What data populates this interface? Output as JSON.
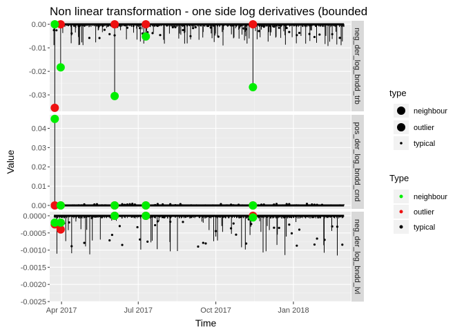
{
  "title": "Non linear transformation - one side log derivatives (bounded",
  "xlabel": "Time",
  "ylabel": "Value",
  "x_ticks": [
    "Apr 2017",
    "Jul 2017",
    "Oct 2017",
    "Jan 2018"
  ],
  "legends": [
    {
      "title": "type",
      "items": [
        "neighbour",
        "outlier",
        "typical"
      ]
    },
    {
      "title": "Type",
      "items": [
        "neighbour",
        "outlier",
        "typical"
      ]
    }
  ],
  "colors": {
    "neighbour": "#00ee00",
    "outlier": "#ee1111",
    "typical": "#000000",
    "panel_bg": "#ebebeb",
    "strip_bg": "#d9d9d9",
    "grid": "#ffffff"
  },
  "chart_data": {
    "type": "line",
    "x_range": [
      "2017-03-18",
      "2018-03-10"
    ],
    "facets": [
      {
        "strip": "neg_der_log_bndd_trb",
        "ylim": [
          -0.037,
          0.0015
        ],
        "ytick_labels": [
          "0.00",
          "-0.01",
          "-0.02",
          "-0.03"
        ],
        "ytick_values": [
          0,
          -0.01,
          -0.02,
          -0.03
        ],
        "outliers": [
          {
            "x": "2017-03-24",
            "y": -0.0355
          },
          {
            "x": "2017-03-31",
            "y": 0.0
          },
          {
            "x": "2017-06-03",
            "y": 0.0
          },
          {
            "x": "2017-07-10",
            "y": 0.0
          },
          {
            "x": "2017-11-14",
            "y": 0.0
          }
        ],
        "neighbours": [
          {
            "x": "2017-03-24",
            "y": 0.0
          },
          {
            "x": "2017-03-31",
            "y": -0.0183
          },
          {
            "x": "2017-06-03",
            "y": -0.0305
          },
          {
            "x": "2017-07-10",
            "y": -0.0052
          },
          {
            "x": "2017-11-14",
            "y": -0.0267
          }
        ]
      },
      {
        "strip": "pos_der_log_bndd_cnd",
        "ylim": [
          -0.0018,
          0.047
        ],
        "ytick_labels": [
          "0.00",
          "0.01",
          "0.02",
          "0.03",
          "0.04"
        ],
        "ytick_values": [
          0,
          0.01,
          0.02,
          0.03,
          0.04
        ],
        "outliers": [
          {
            "x": "2017-03-24",
            "y": 0.0
          },
          {
            "x": "2017-03-31",
            "y": 0.0
          },
          {
            "x": "2017-06-03",
            "y": 0.0
          },
          {
            "x": "2017-07-10",
            "y": 0.0
          },
          {
            "x": "2017-11-14",
            "y": 0.0
          }
        ],
        "neighbours": [
          {
            "x": "2017-03-24",
            "y": 0.0449
          },
          {
            "x": "2017-03-31",
            "y": 0.0
          },
          {
            "x": "2017-06-03",
            "y": 0.0
          },
          {
            "x": "2017-07-10",
            "y": 0.0
          },
          {
            "x": "2017-11-14",
            "y": 0.0
          }
        ]
      },
      {
        "strip": "neg_der_log_bndd_lvl",
        "ylim": [
          -0.0025,
          0.00012
        ],
        "ytick_labels": [
          "0.0000",
          "-0.0005",
          "-0.0010",
          "-0.0015",
          "-0.0020",
          "-0.0025"
        ],
        "ytick_values": [
          0,
          -0.0005,
          -0.001,
          -0.0015,
          -0.002,
          -0.0025
        ],
        "outliers": [
          {
            "x": "2017-03-24",
            "y": -0.00025
          },
          {
            "x": "2017-03-31",
            "y": -0.0004
          },
          {
            "x": "2017-06-03",
            "y": 0.0
          },
          {
            "x": "2017-07-10",
            "y": 0.0
          },
          {
            "x": "2017-11-14",
            "y": 0.0
          }
        ],
        "neighbours": [
          {
            "x": "2017-03-24",
            "y": -0.0002
          },
          {
            "x": "2017-03-31",
            "y": -0.0002
          },
          {
            "x": "2017-06-03",
            "y": 0.0
          },
          {
            "x": "2017-07-10",
            "y": 0.0
          },
          {
            "x": "2017-11-14",
            "y": -5e-05
          }
        ]
      }
    ]
  }
}
